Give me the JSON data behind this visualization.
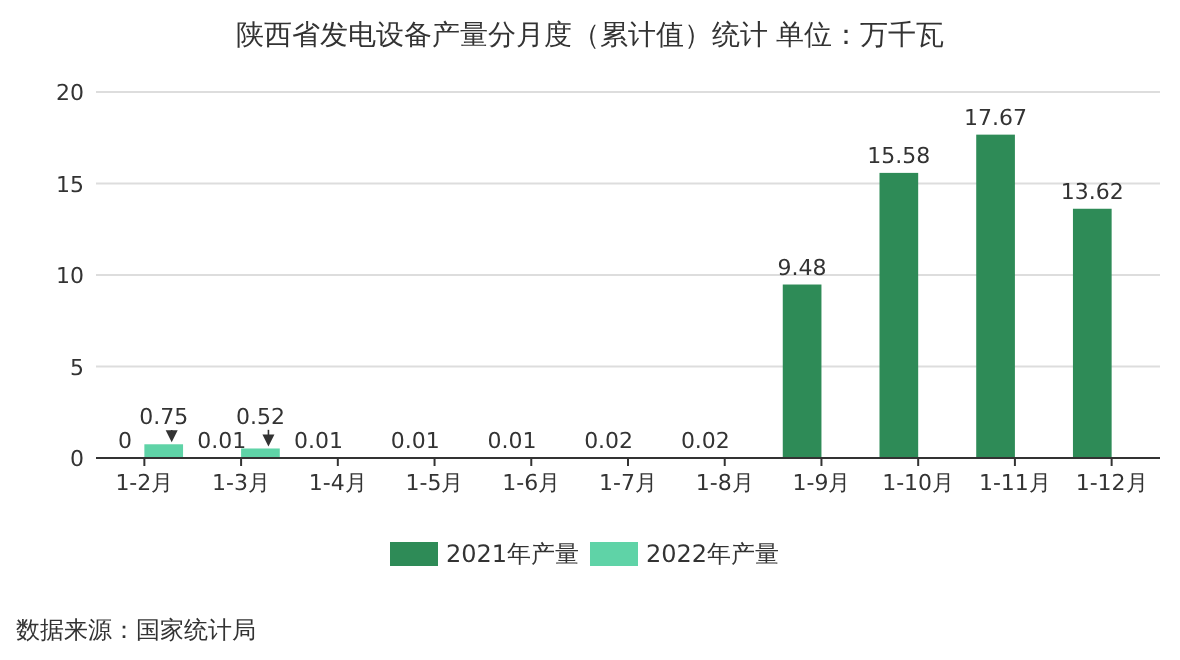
{
  "chart_data": {
    "type": "bar",
    "title": "陕西省发电设备产量分月度（累计值）统计 单位：万千瓦",
    "categories": [
      "1-2月",
      "1-3月",
      "1-4月",
      "1-5月",
      "1-6月",
      "1-7月",
      "1-8月",
      "1-9月",
      "1-10月",
      "1-11月",
      "1-12月"
    ],
    "series": [
      {
        "name": "2021年产量",
        "color": "#2e8b57",
        "values": [
          0,
          0.01,
          0.01,
          0.01,
          0.01,
          0.02,
          0.02,
          9.48,
          15.58,
          17.67,
          13.62
        ]
      },
      {
        "name": "2022年产量",
        "color": "#5fd3a7",
        "values": [
          0.75,
          0.52,
          null,
          null,
          null,
          null,
          null,
          null,
          null,
          null,
          null
        ]
      }
    ],
    "ylim": [
      0,
      20
    ],
    "yticks": [
      0,
      5,
      10,
      15,
      20
    ],
    "grid": "y",
    "legend": "bottom",
    "data_labels": true,
    "annotations": [
      "数据来源：国家统计局"
    ]
  }
}
